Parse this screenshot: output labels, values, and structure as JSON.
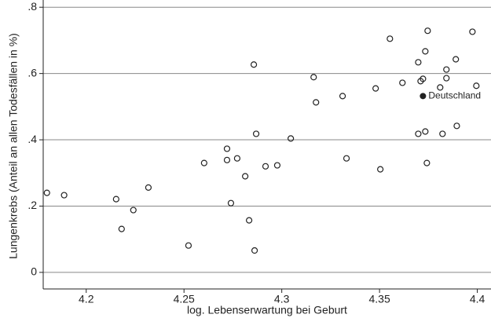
{
  "chart_data": {
    "type": "scatter",
    "x_label": "log. Lebenserwartung bei Geburt",
    "y_label": "Lungenkrebs (Anteil an allen Todesfällen in %)",
    "x": [
      4.1799,
      4.1887,
      4.2153,
      4.2318,
      4.2181,
      4.2241,
      4.2523,
      4.2603,
      4.272,
      4.272,
      4.2772,
      4.274,
      4.2813,
      4.2833,
      4.2857,
      4.2869,
      4.2861,
      4.2917,
      4.2977,
      4.3046,
      4.3163,
      4.3175,
      4.3311,
      4.3331,
      4.348,
      4.3504,
      4.3553,
      4.3617,
      4.3698,
      4.371,
      4.3722,
      4.3734,
      4.3746,
      4.3698,
      4.3734,
      4.3742,
      4.381,
      4.3822,
      4.3842,
      4.3842,
      4.389,
      4.3895,
      4.3975,
      4.3995
    ],
    "values": [
      0.24,
      0.233,
      0.221,
      0.256,
      0.131,
      0.188,
      0.081,
      0.33,
      0.373,
      0.339,
      0.344,
      0.209,
      0.29,
      0.157,
      0.627,
      0.418,
      0.066,
      0.32,
      0.323,
      0.404,
      0.589,
      0.513,
      0.532,
      0.344,
      0.555,
      0.311,
      0.705,
      0.572,
      0.634,
      0.577,
      0.584,
      0.667,
      0.729,
      0.418,
      0.425,
      0.33,
      0.558,
      0.418,
      0.612,
      0.586,
      0.643,
      0.442,
      0.726,
      0.563
    ],
    "color": "#222222",
    "highlight": {
      "label": "Deutschland",
      "x": 4.3722,
      "y": 0.532,
      "color": "#222222"
    },
    "xlim": [
      4.178,
      4.407
    ],
    "xticks": [
      4.2,
      4.25,
      4.3,
      4.35,
      4.4
    ],
    "ylim": [
      -0.05,
      0.81
    ],
    "yticks": [
      0,
      {
        "value": 0.2,
        "label": ".2"
      },
      {
        "value": 0.4,
        "label": ".4"
      },
      {
        "value": 0.6,
        "label": ".6"
      },
      {
        "value": 0.8,
        "label": ".8"
      }
    ],
    "grid": true
  }
}
